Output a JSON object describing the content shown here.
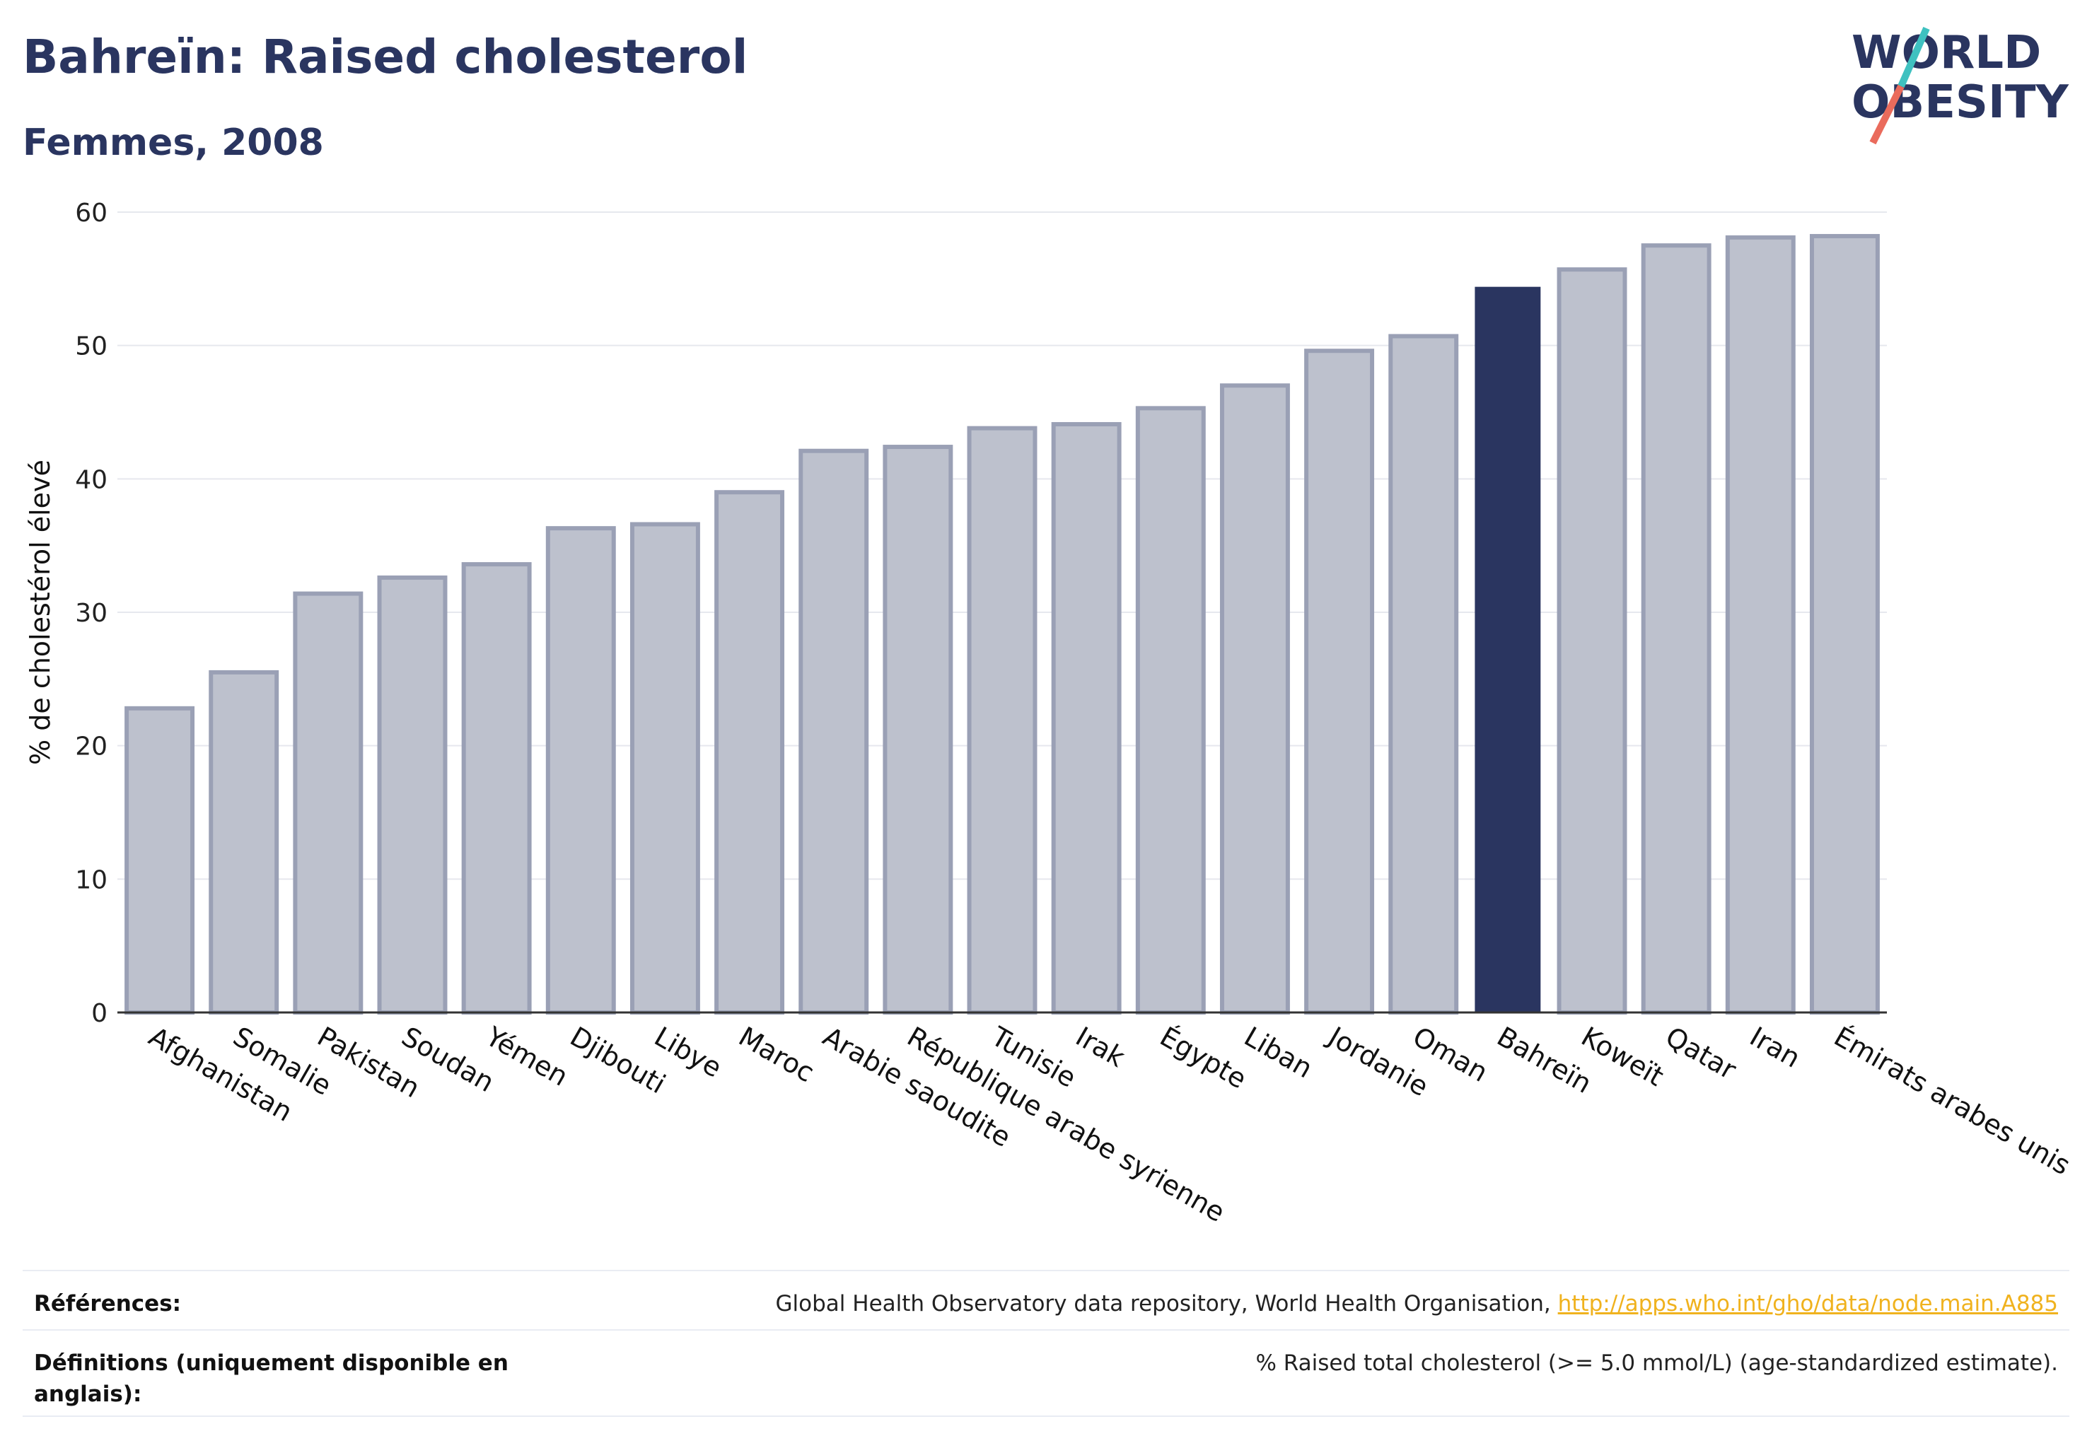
{
  "header": {
    "title": "Bahreïn: Raised cholesterol",
    "subtitle": "Femmes, 2008"
  },
  "logo": {
    "line1": "WORLD",
    "line2": "OBESITY",
    "slash_color_top": "#3fc1c0",
    "slash_color_bottom": "#ea6b5c"
  },
  "chart_data": {
    "type": "bar",
    "title": "Bahreïn: Raised cholesterol",
    "subtitle": "Femmes, 2008",
    "xlabel": "",
    "ylabel": "% de cholestérol élevé",
    "ylim": [
      0,
      60
    ],
    "yticks": [
      0,
      10,
      20,
      30,
      40,
      50,
      60
    ],
    "grid": true,
    "highlight": "Bahreïn",
    "colors": {
      "default": "#bdc1cd",
      "default_border": "#9aa0b5",
      "highlight": "#2a3560"
    },
    "categories": [
      "Afghanistan",
      "Somalie",
      "Pakistan",
      "Soudan",
      "Yémen",
      "Djibouti",
      "Libye",
      "Maroc",
      "Arabie saoudite",
      "République arabe syrienne",
      "Tunisie",
      "Irak",
      "Égypte",
      "Liban",
      "Jordanie",
      "Oman",
      "Bahreïn",
      "Koweït",
      "Qatar",
      "Iran",
      "Émirats arabes unis"
    ],
    "values": [
      22.8,
      25.5,
      31.4,
      32.6,
      33.6,
      36.3,
      36.6,
      39.0,
      42.1,
      42.4,
      43.8,
      44.1,
      45.3,
      47.0,
      49.6,
      50.7,
      54.4,
      55.7,
      57.5,
      58.1,
      58.2
    ]
  },
  "footer": {
    "references_label": "Références:",
    "references_text": "Global Health Observatory data repository, World Health Organisation, ",
    "references_link": "http://apps.who.int/gho/data/node.main.A885",
    "definitions_label": "Définitions (uniquement disponible en anglais):",
    "definitions_text": "% Raised total cholesterol (>= 5.0 mmol/L) (age-standardized estimate)."
  }
}
